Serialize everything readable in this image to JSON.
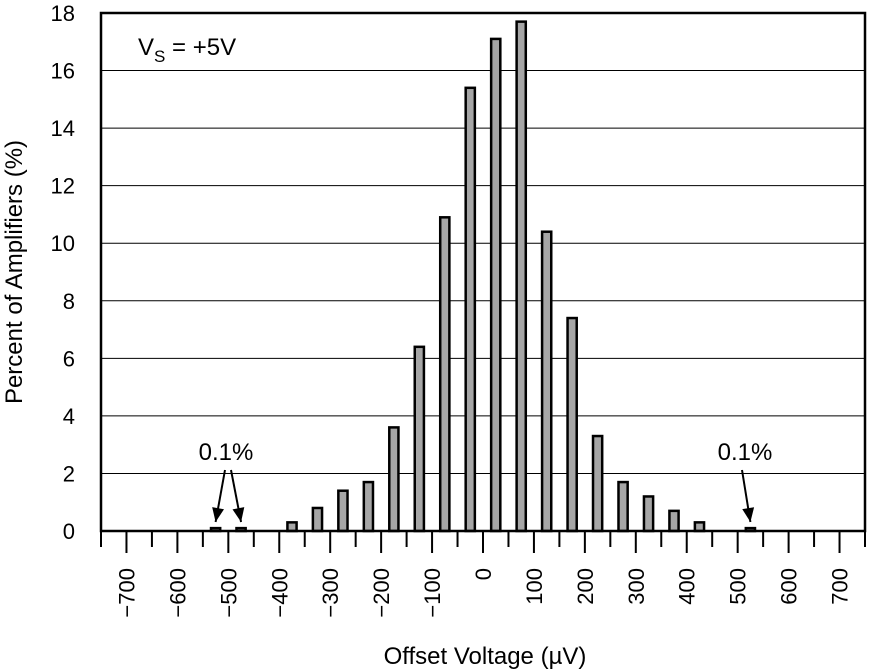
{
  "chart_data": {
    "type": "bar",
    "title": "",
    "xlabel": "Offset Voltage (µV)",
    "ylabel": "Percent of Amplifiers (%)",
    "ylim": [
      0,
      18
    ],
    "xlim": [
      -750,
      750
    ],
    "y_ticks": [
      0,
      2,
      4,
      6,
      8,
      10,
      12,
      14,
      16,
      18
    ],
    "x_tick_labels": [
      "−700",
      "−600",
      "−500",
      "−400",
      "−300",
      "−200",
      "−100",
      "0",
      "100",
      "200",
      "300",
      "400",
      "500",
      "600",
      "700"
    ],
    "x_tick_values": [
      -700,
      -600,
      -500,
      -400,
      -300,
      -200,
      -100,
      0,
      100,
      200,
      300,
      400,
      500,
      600,
      700
    ],
    "grid": true,
    "bar_color": "#a6a6a6",
    "bars": [
      {
        "x": -525,
        "value": 0.1
      },
      {
        "x": -475,
        "value": 0.1
      },
      {
        "x": -375,
        "value": 0.3
      },
      {
        "x": -325,
        "value": 0.8
      },
      {
        "x": -275,
        "value": 1.4
      },
      {
        "x": -225,
        "value": 1.7
      },
      {
        "x": -175,
        "value": 3.6
      },
      {
        "x": -125,
        "value": 6.4
      },
      {
        "x": -75,
        "value": 10.9
      },
      {
        "x": -25,
        "value": 15.4
      },
      {
        "x": 25,
        "value": 17.1
      },
      {
        "x": 75,
        "value": 17.7
      },
      {
        "x": 125,
        "value": 10.4
      },
      {
        "x": 175,
        "value": 7.4
      },
      {
        "x": 225,
        "value": 3.3
      },
      {
        "x": 275,
        "value": 1.7
      },
      {
        "x": 325,
        "value": 1.2
      },
      {
        "x": 375,
        "value": 0.7
      },
      {
        "x": 425,
        "value": 0.3
      },
      {
        "x": 525,
        "value": 0.1
      }
    ],
    "annotations": {
      "condition": {
        "main": "V",
        "sub": "S",
        "rest": " = +5V"
      },
      "left_note": "0.1%",
      "right_note": "0.1%"
    }
  }
}
